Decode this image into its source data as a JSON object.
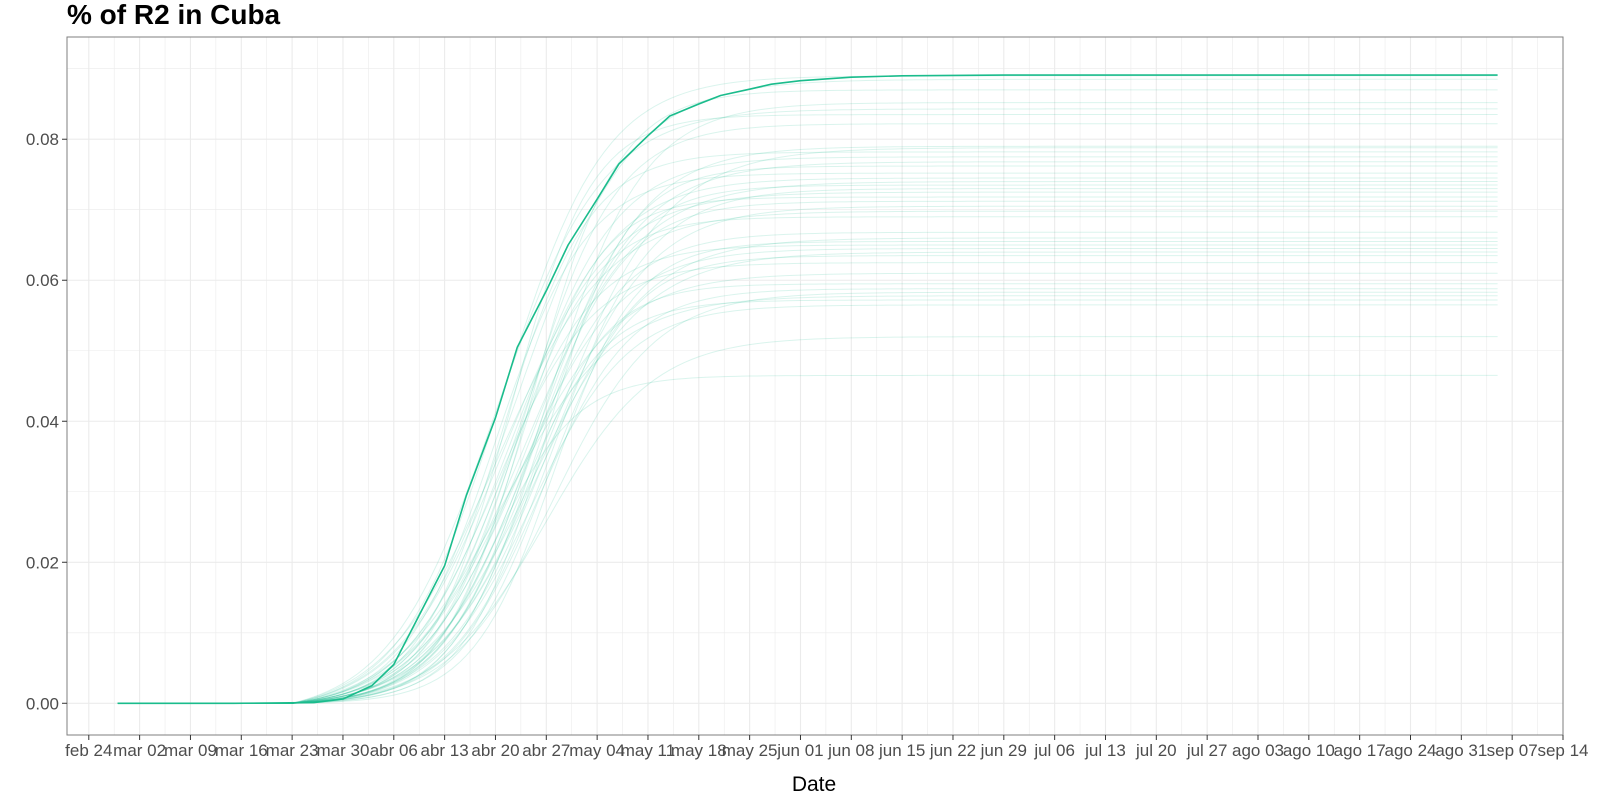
{
  "chart_data": {
    "type": "line",
    "title": "% of R2 in  Cuba",
    "xlabel": "Date",
    "ylabel": "",
    "x_scale": "date",
    "xlim": [
      "2020-02-21",
      "2020-09-14"
    ],
    "ylim": [
      -0.0045,
      0.0945
    ],
    "grid": true,
    "legend": "none",
    "x_ticks": [
      {
        "date": "2020-02-24",
        "label": "feb 24"
      },
      {
        "date": "2020-03-02",
        "label": "mar 02"
      },
      {
        "date": "2020-03-09",
        "label": "mar 09"
      },
      {
        "date": "2020-03-16",
        "label": "mar 16"
      },
      {
        "date": "2020-03-23",
        "label": "mar 23"
      },
      {
        "date": "2020-03-30",
        "label": "mar 30"
      },
      {
        "date": "2020-04-06",
        "label": "abr 06"
      },
      {
        "date": "2020-04-13",
        "label": "abr 13"
      },
      {
        "date": "2020-04-20",
        "label": "abr 20"
      },
      {
        "date": "2020-04-27",
        "label": "abr 27"
      },
      {
        "date": "2020-05-04",
        "label": "may 04"
      },
      {
        "date": "2020-05-11",
        "label": "may 11"
      },
      {
        "date": "2020-05-18",
        "label": "may 18"
      },
      {
        "date": "2020-05-25",
        "label": "may 25"
      },
      {
        "date": "2020-06-01",
        "label": "jun 01"
      },
      {
        "date": "2020-06-08",
        "label": "jun 08"
      },
      {
        "date": "2020-06-15",
        "label": "jun 15"
      },
      {
        "date": "2020-06-22",
        "label": "jun 22"
      },
      {
        "date": "2020-06-29",
        "label": "jun 29"
      },
      {
        "date": "2020-07-06",
        "label": "jul 06"
      },
      {
        "date": "2020-07-13",
        "label": "jul 13"
      },
      {
        "date": "2020-07-20",
        "label": "jul 20"
      },
      {
        "date": "2020-07-27",
        "label": "jul 27"
      },
      {
        "date": "2020-08-03",
        "label": "ago 03"
      },
      {
        "date": "2020-08-10",
        "label": "ago 10"
      },
      {
        "date": "2020-08-17",
        "label": "ago 17"
      },
      {
        "date": "2020-08-24",
        "label": "ago 24"
      },
      {
        "date": "2020-08-31",
        "label": "ago 31"
      },
      {
        "date": "2020-09-07",
        "label": "sep 07"
      },
      {
        "date": "2020-09-14",
        "label": "sep 14"
      }
    ],
    "y_ticks": [
      {
        "value": 0.0,
        "label": "0.00"
      },
      {
        "value": 0.02,
        "label": "0.02"
      },
      {
        "value": 0.04,
        "label": "0.04"
      },
      {
        "value": 0.06,
        "label": "0.06"
      },
      {
        "value": 0.08,
        "label": "0.08"
      }
    ],
    "colors": {
      "line": "#1abc8c",
      "grid": "#ebebeb",
      "panel_border": "#7f7f7f"
    },
    "main_series": {
      "x": [
        "2020-02-28",
        "2020-03-15",
        "2020-03-26",
        "2020-03-30",
        "2020-04-03",
        "2020-04-06",
        "2020-04-09",
        "2020-04-13",
        "2020-04-16",
        "2020-04-20",
        "2020-04-23",
        "2020-04-27",
        "2020-04-30",
        "2020-05-04",
        "2020-05-07",
        "2020-05-11",
        "2020-05-14",
        "2020-05-18",
        "2020-05-21",
        "2020-05-25",
        "2020-05-28",
        "2020-06-01",
        "2020-06-08",
        "2020-06-15",
        "2020-06-29",
        "2020-07-20",
        "2020-08-17",
        "2020-09-05"
      ],
      "y": [
        0.0,
        0.0,
        0.0001,
        0.0006,
        0.0025,
        0.0055,
        0.0115,
        0.0195,
        0.0295,
        0.0405,
        0.0505,
        0.0585,
        0.065,
        0.0715,
        0.0765,
        0.0805,
        0.0833,
        0.085,
        0.0862,
        0.0871,
        0.0878,
        0.0883,
        0.0888,
        0.089,
        0.0891,
        0.0891,
        0.0891,
        0.0891
      ]
    },
    "simulations": [
      0.0465,
      0.052,
      0.0565,
      0.0572,
      0.0578,
      0.0583,
      0.0588,
      0.0595,
      0.061,
      0.0625,
      0.0635,
      0.064,
      0.0645,
      0.065,
      0.0655,
      0.066,
      0.0668,
      0.069,
      0.0698,
      0.0705,
      0.0712,
      0.0718,
      0.0725,
      0.073,
      0.0735,
      0.074,
      0.0745,
      0.0752,
      0.0762,
      0.0768,
      0.0775,
      0.0782,
      0.0788,
      0.079,
      0.0822,
      0.0835,
      0.0843,
      0.0852,
      0.087,
      0.0885,
      0.089
    ]
  }
}
